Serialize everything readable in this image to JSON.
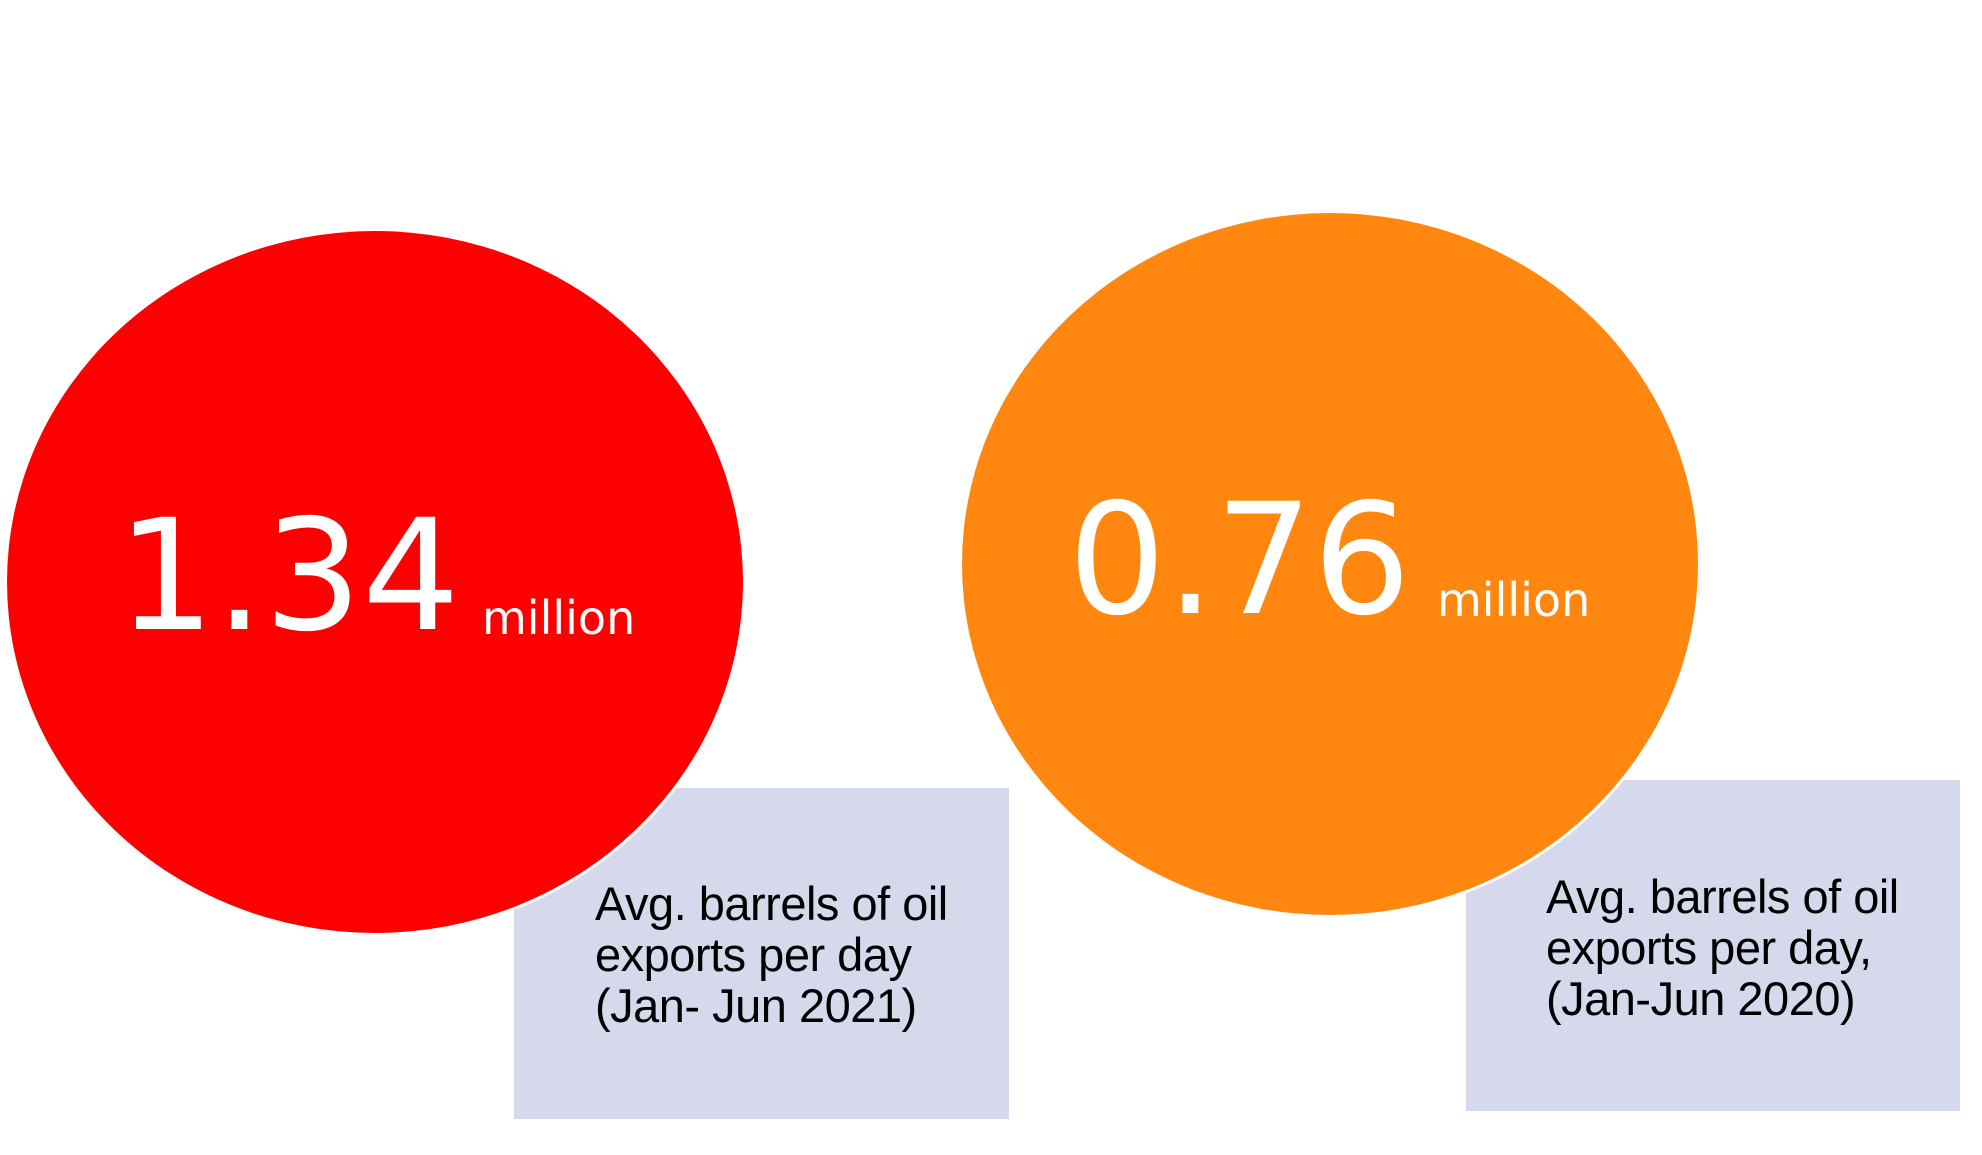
{
  "stats": [
    {
      "value": "1.34",
      "unit": "million",
      "description": "Avg. barrels of oil\nexports per day\n(Jan- Jun 2021)",
      "circle_color": "#ff0000",
      "box_color": "#d5d9eb"
    },
    {
      "value": "0.76",
      "unit": "million",
      "description": "Avg. barrels of oil\nexports per day,\n(Jan-Jun 2020)",
      "circle_color": "#ff870f",
      "box_color": "#d5d9eb"
    }
  ]
}
